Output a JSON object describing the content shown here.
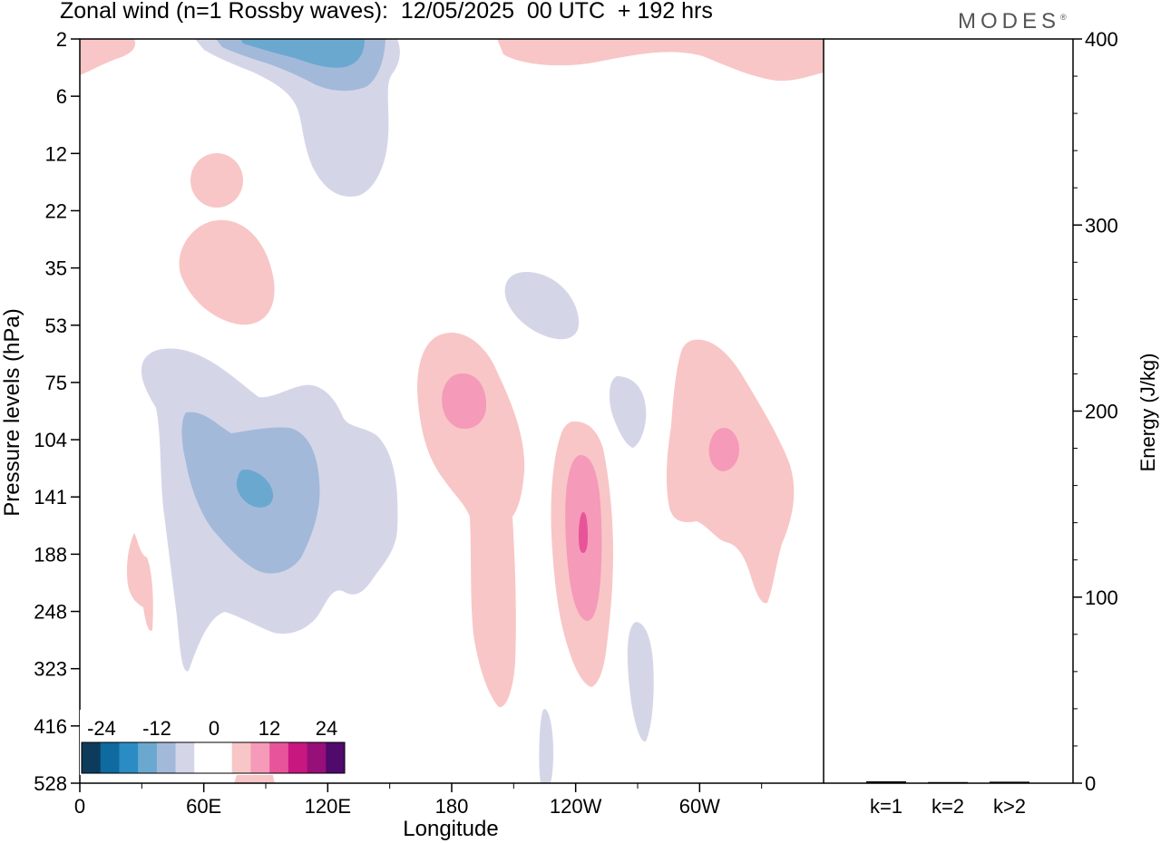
{
  "header": {
    "title": "Zonal wind (n=1 Rossby waves):  12/05/2025  00 UTC  + 192 hrs",
    "logo": "MODES",
    "logo_mark": "®"
  },
  "chart_data": [
    {
      "type": "heatmap",
      "title": "Zonal wind (n=1 Rossby waves):  12/05/2025  00 UTC  + 192 hrs",
      "xlabel": "Longitude",
      "ylabel": "Pressure levels (hPa)",
      "x_ticks": [
        "0",
        "60E",
        "120E",
        "180",
        "120W",
        "60W"
      ],
      "y_ticks": [
        "2",
        "6",
        "12",
        "22",
        "35",
        "53",
        "75",
        "104",
        "141",
        "188",
        "248",
        "323",
        "416",
        "528"
      ],
      "colorbar": {
        "tick_labels": [
          "-24",
          "-12",
          "0",
          "12",
          "24"
        ],
        "colors": [
          "#0d3b5c",
          "#0f6aa0",
          "#2b8cc4",
          "#6aa8d0",
          "#a3b9d9",
          "#d4d6e8",
          "#ffffff",
          "#ffffff",
          "#f8c6c6",
          "#f59ab8",
          "#e8549a",
          "#c8177f",
          "#970f78",
          "#4f0a6b"
        ]
      },
      "features": [
        {
          "kind": "negative",
          "peak": -18,
          "longitude": "100E",
          "level_hPa": 2
        },
        {
          "kind": "negative",
          "peak": -15,
          "longitude": "80E",
          "level_hPa": 141
        },
        {
          "kind": "negative",
          "peak": -3,
          "longitude": "140W",
          "level_hPa": 35
        },
        {
          "kind": "negative",
          "peak": -3,
          "longitude": "105W",
          "level_hPa": 90
        },
        {
          "kind": "negative",
          "peak": -3,
          "longitude": "100W",
          "level_hPa": 330
        },
        {
          "kind": "positive",
          "peak": 3,
          "longitude": "65E",
          "level_hPa": 35
        },
        {
          "kind": "positive",
          "peak": 3,
          "longitude": "60E",
          "level_hPa": 14
        },
        {
          "kind": "positive",
          "peak": 9,
          "longitude": "180",
          "level_hPa": 85
        },
        {
          "kind": "positive",
          "peak": 12,
          "longitude": "120W",
          "level_hPa": 160
        },
        {
          "kind": "positive",
          "peak": 9,
          "longitude": "35W",
          "level_hPa": 110
        }
      ]
    },
    {
      "type": "bar",
      "ylabel": "Energy (J/kg)",
      "categories": [
        "k=1",
        "k=2",
        "k>2"
      ],
      "values": [
        0.5,
        0.1,
        0.3
      ],
      "ylim": [
        0,
        400
      ],
      "y_ticks": [
        "0",
        "100",
        "200",
        "300",
        "400"
      ]
    }
  ]
}
